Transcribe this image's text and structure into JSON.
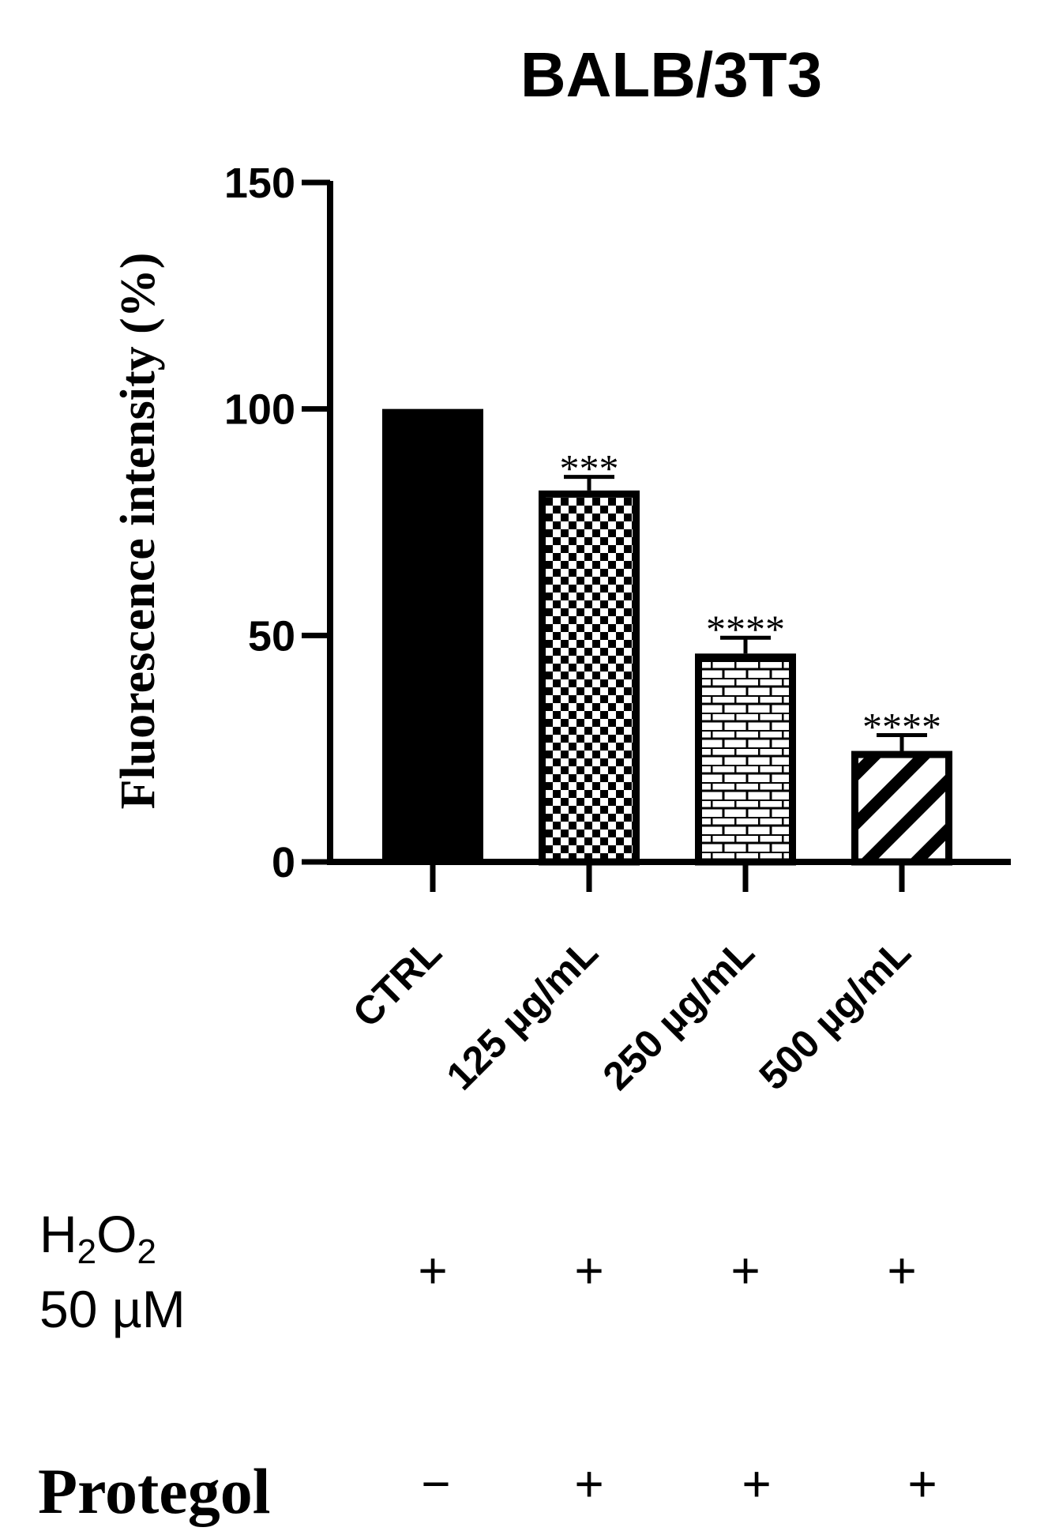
{
  "chart_data": {
    "type": "bar",
    "title": "BALB/3T3",
    "ylabel": "Fluorescence intensity (%)",
    "xlabel": "",
    "ylim": [
      0,
      150
    ],
    "yticks": [
      0,
      50,
      100,
      150
    ],
    "categories": [
      "CTRL",
      "125 µg/mL",
      "250 µg/mL",
      "500 µg/mL"
    ],
    "values": [
      100,
      82,
      46,
      24.5
    ],
    "errors": [
      0,
      3,
      3.5,
      3.5
    ],
    "significance": [
      "",
      "***",
      "****",
      "****"
    ],
    "fills": [
      "solid",
      "checkerboard",
      "brick",
      "diagonal-stripes"
    ],
    "grid": false,
    "legend": "none"
  },
  "conditions": [
    {
      "label_main": "H",
      "label_sub1": "2",
      "label_mid": "O",
      "label_sub2": "2",
      "label_line2": "50 µM",
      "signs": [
        "+",
        "+",
        "+",
        "+"
      ]
    },
    {
      "label": "Protegol",
      "signs": [
        "−",
        "+",
        "+",
        "+"
      ]
    }
  ],
  "colors": {
    "bar": "#000000",
    "background": "#ffffff"
  }
}
